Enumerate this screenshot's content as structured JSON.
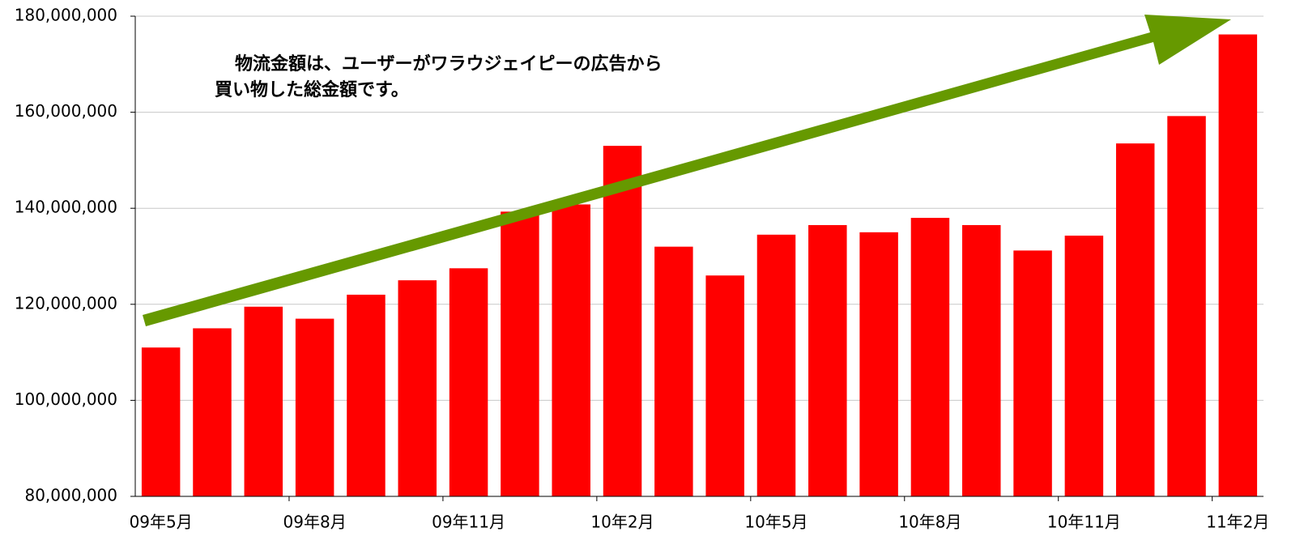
{
  "chart_data": {
    "type": "bar",
    "categories": [
      "09年5月",
      null,
      null,
      "09年8月",
      null,
      null,
      "09年11月",
      null,
      null,
      "10年2月",
      null,
      null,
      "10年5月",
      null,
      null,
      "10年8月",
      null,
      null,
      "10年11月",
      null,
      null,
      "11年2月"
    ],
    "values": [
      111000000,
      115000000,
      119500000,
      117000000,
      122000000,
      125000000,
      127500000,
      139300000,
      140800000,
      153000000,
      132000000,
      126000000,
      134500000,
      136500000,
      135000000,
      138000000,
      136500000,
      131200000,
      134300000,
      153500000,
      159200000,
      176200000
    ],
    "color": "#ff0000",
    "ylim": [
      80000000,
      180000000
    ],
    "yticks": [
      {
        "value": 80000000,
        "label": "80,000,000"
      },
      {
        "value": 100000000,
        "label": "100,000,000"
      },
      {
        "value": 120000000,
        "label": "120,000,000"
      },
      {
        "value": 140000000,
        "label": "140,000,000"
      },
      {
        "value": 160000000,
        "label": "160,000,000"
      },
      {
        "value": 180000000,
        "label": "180,000,000"
      }
    ],
    "grid": true,
    "annotation": [
      "物流金額は、ユーザーがワラウジェイピーの広告から",
      "買い物した総金額です。"
    ]
  }
}
